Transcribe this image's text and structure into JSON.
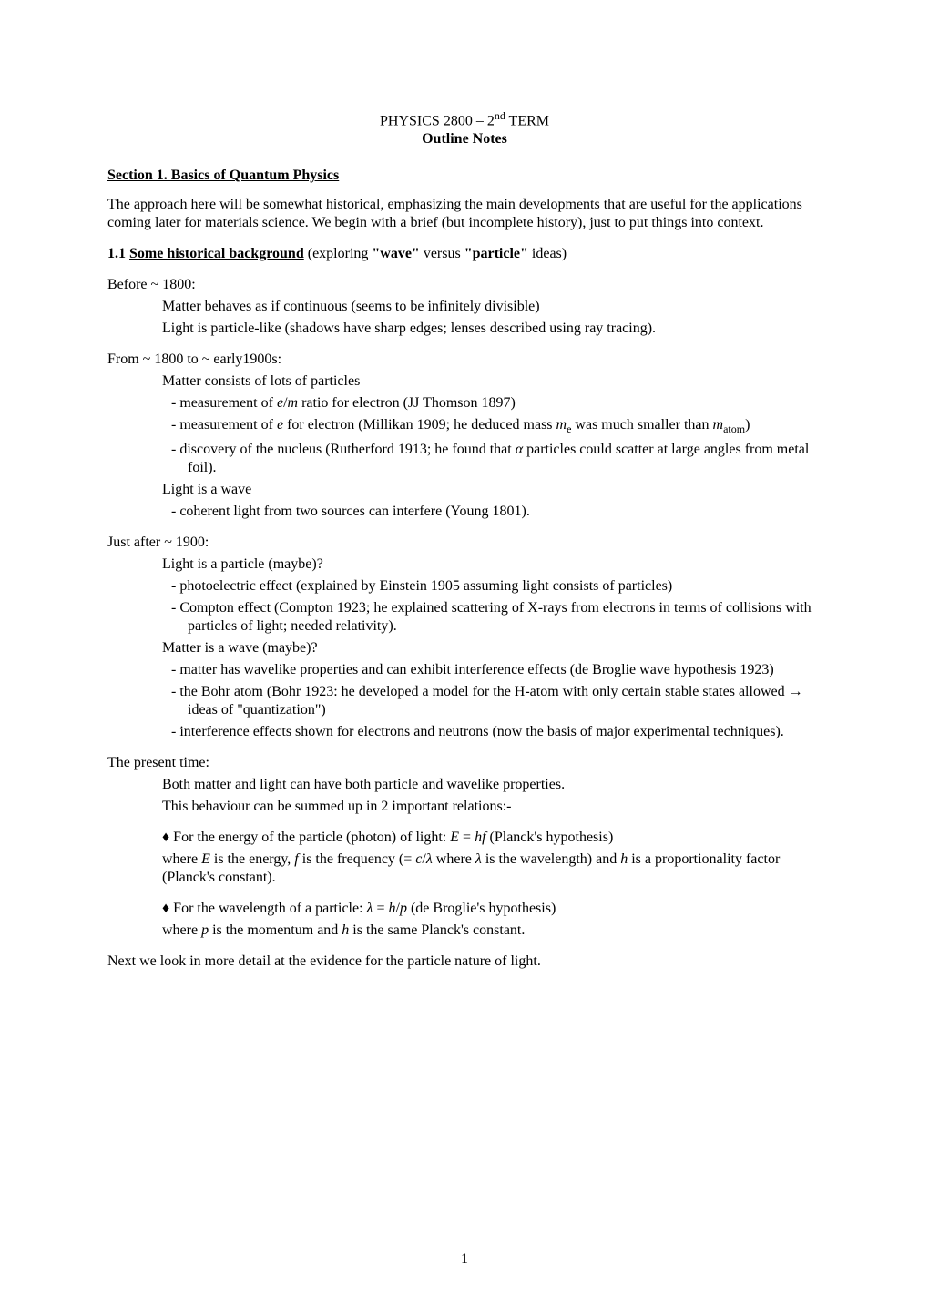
{
  "header": {
    "course": "PHYSICS 2800  –  2",
    "course_sup": "nd",
    "course_tail": " TERM",
    "subtitle": "Outline Notes"
  },
  "section1": {
    "heading": "Section 1.  Basics of Quantum Physics",
    "intro": "The approach here will be somewhat historical, emphasizing the main developments that are useful for the applications coming later for materials science.  We begin with a brief (but incomplete history), just to put things into context."
  },
  "sub11": {
    "number": "1.1",
    "title": "Some historical background",
    "tail_a": "     (exploring ",
    "tail_b": "\"wave\"",
    "tail_c": " versus ",
    "tail_d": "\"particle\"",
    "tail_e": " ideas)"
  },
  "before1800": {
    "label": "Before  ~ 1800:",
    "line1": "Matter behaves as if continuous (seems to be infinitely divisible)",
    "line2": "Light is particle-like (shadows have sharp edges; lenses described using ray tracing)."
  },
  "from1800": {
    "label": "From   ~ 1800 to ~ early1900s:",
    "mline": "Matter consists of lots of particles",
    "b1_a": "measurement of ",
    "b1_b": "e",
    "b1_c": "/",
    "b1_d": "m",
    "b1_e": " ratio for electron (JJ Thomson 1897)",
    "b2_a": "measurement of ",
    "b2_b": "e",
    "b2_c": " for electron (Millikan 1909; he deduced mass ",
    "b2_d": "m",
    "b2_sub": "e",
    "b2_e": " was much smaller than ",
    "b2_f": "m",
    "b2_sub2": "atom",
    "b2_g": ")",
    "b3_a": "discovery of the nucleus (Rutherford 1913; he found that ",
    "b3_b": "α",
    "b3_c": " particles could scatter at large angles from metal foil).",
    "lline": "Light is a wave",
    "lb1": "coherent light from two sources can interfere (Young 1801)."
  },
  "after1900": {
    "label": "Just after  ~ 1900:",
    "pline": "Light is a particle (maybe)?",
    "pb1": "photoelectric effect (explained by Einstein 1905 assuming light consists of particles)",
    "pb2": "Compton effect (Compton 1923; he explained scattering of X-rays from electrons in terms of collisions with particles of light; needed relativity).",
    "wline": "Matter is a wave (maybe)?",
    "wb1": "matter has wavelike properties and can exhibit interference effects (de Broglie wave hypothesis 1923)",
    "wb2_a": "the Bohr atom (Bohr 1923: he developed a model for the H-atom with only certain stable states allowed  →  ideas of \"quantization\")",
    "wb3": "interference effects shown for electrons and neutrons (now the basis of major experimental techniques)."
  },
  "present": {
    "label": "The present time:",
    "line1": "Both matter and light can have both particle and wavelike properties.",
    "line2": "This behaviour can be summed up in 2 important relations:-",
    "bl1_a": "For the energy of the particle (photon) of light:       ",
    "bl1_b": "E",
    "bl1_c": " = ",
    "bl1_d": "hf",
    "bl1_e": "        (Planck's hypothesis)",
    "bl1_follow_a": "where ",
    "bl1_follow_b": "E",
    "bl1_follow_c": " is the energy, ",
    "bl1_follow_d": "f",
    "bl1_follow_e": " is the frequency (= ",
    "bl1_follow_f": "c",
    "bl1_follow_g": "/",
    "bl1_follow_h": "λ",
    "bl1_follow_i": " where ",
    "bl1_follow_j": "λ",
    "bl1_follow_k": " is the wavelength) and ",
    "bl1_follow_l": "h",
    "bl1_follow_m": " is a proportionality factor (Planck's constant).",
    "bl2_a": "For the wavelength of a particle:                ",
    "bl2_b": "λ",
    "bl2_c": " = ",
    "bl2_d": "h",
    "bl2_e": "/",
    "bl2_f": "p",
    "bl2_g": "            (de Broglie's hypothesis)",
    "bl2_follow_a": "where ",
    "bl2_follow_b": "p",
    "bl2_follow_c": " is the momentum and ",
    "bl2_follow_d": "h",
    "bl2_follow_e": " is the same Planck's constant."
  },
  "closing": "Next we look in more detail at the evidence for the particle nature of light.",
  "pagenum": "1",
  "dash": "-   ",
  "diamond": "♦  "
}
